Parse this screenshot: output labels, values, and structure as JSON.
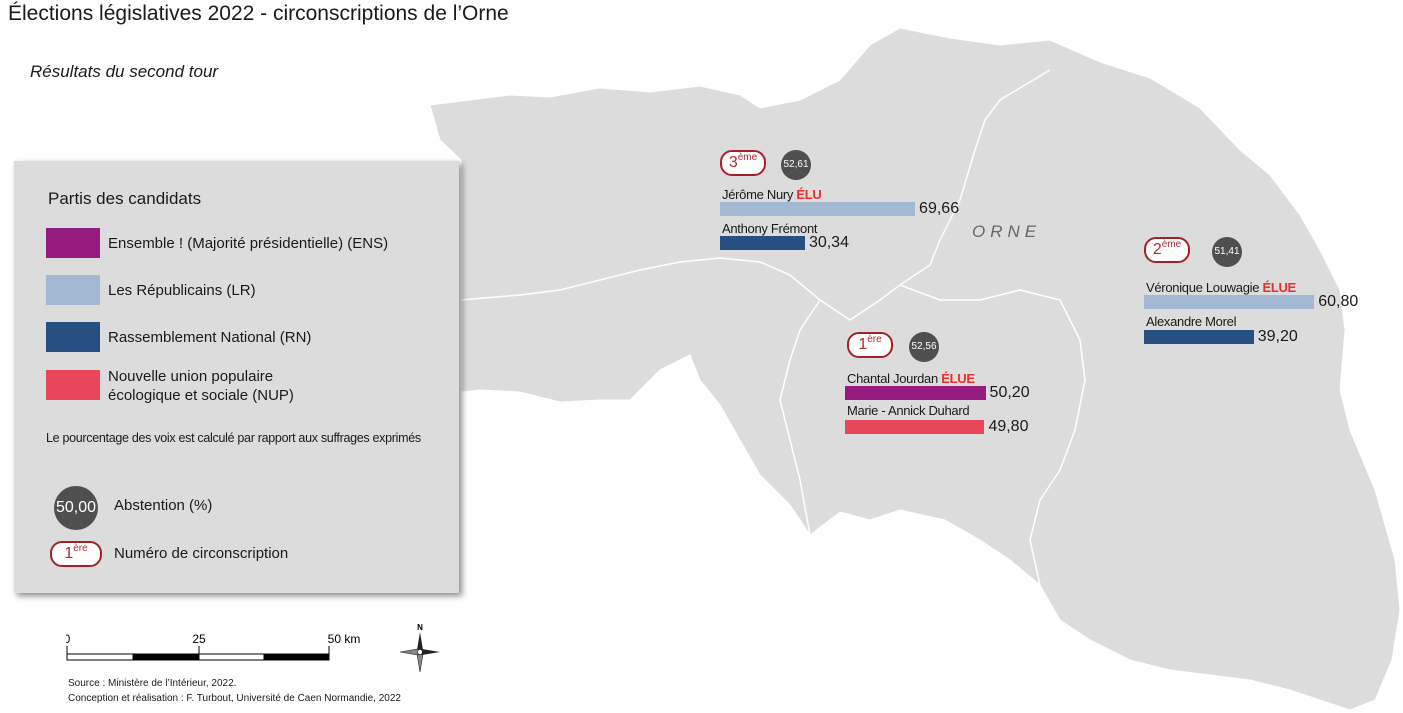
{
  "title": "Élections législatives 2022 - circonscriptions de l’Orne",
  "subtitle": "Résultats du second tour",
  "region_label": "ORNE",
  "colors": {
    "ENS": "#951b81",
    "LR": "#a3b8d3",
    "RN": "#274f82",
    "NUP": "#e8465b",
    "abstention": "#4f4f4f",
    "elu": "#e8312a",
    "circ_border": "#a5212a",
    "map_fill": "#dcdcdc"
  },
  "legend": {
    "title": "Partis des candidats",
    "parties": [
      {
        "code": "ENS",
        "label": "Ensemble ! (Majorité présidentielle) (ENS)"
      },
      {
        "code": "LR",
        "label": "Les Républicains (LR)"
      },
      {
        "code": "RN",
        "label": "Rassemblement National (RN)"
      },
      {
        "code": "NUP",
        "label": "Nouvelle union populaire écologique et sociale (NUP)"
      }
    ],
    "note": "Le pourcentage des voix est calculé par rapport aux suffrages exprimés",
    "abstention_sample": "50,00",
    "abstention_label": "Abstention (%)",
    "circ_sample_num": "1",
    "circ_sample_sup": "ère",
    "circ_label": "Numéro de circonscription"
  },
  "circonscriptions": [
    {
      "num": "3",
      "sup": "ème",
      "abstention": "52,61",
      "candidates": [
        {
          "name": "Jérôme Nury",
          "elected_tag": "ÉLU",
          "party": "LR",
          "pct": 69.66,
          "pct_label": "69,66"
        },
        {
          "name": "Anthony Frémont",
          "elected_tag": "",
          "party": "RN",
          "pct": 30.34,
          "pct_label": "30,34"
        }
      ]
    },
    {
      "num": "2",
      "sup": "ème",
      "abstention": "51,41",
      "candidates": [
        {
          "name": "Véronique Louwagie",
          "elected_tag": "ÉLUE",
          "party": "LR",
          "pct": 60.8,
          "pct_label": "60,80"
        },
        {
          "name": "Alexandre Morel",
          "elected_tag": "",
          "party": "RN",
          "pct": 39.2,
          "pct_label": "39,20"
        }
      ]
    },
    {
      "num": "1",
      "sup": "ère",
      "abstention": "52,56",
      "candidates": [
        {
          "name": "Chantal Jourdan",
          "elected_tag": "ÉLUE",
          "party": "ENS",
          "pct": 50.2,
          "pct_label": "50,20"
        },
        {
          "name": "Marie - Annick Duhard",
          "elected_tag": "",
          "party": "NUP",
          "pct": 49.8,
          "pct_label": "49,80"
        }
      ]
    }
  ],
  "scale": {
    "labels": [
      "0",
      "25",
      "50 km"
    ]
  },
  "compass": "N",
  "source_line1": "Source : Ministère de l’Intérieur, 2022.",
  "source_line2": "Conception et réalisation : F. Turbout, Université de Caen Normandie, 2022"
}
